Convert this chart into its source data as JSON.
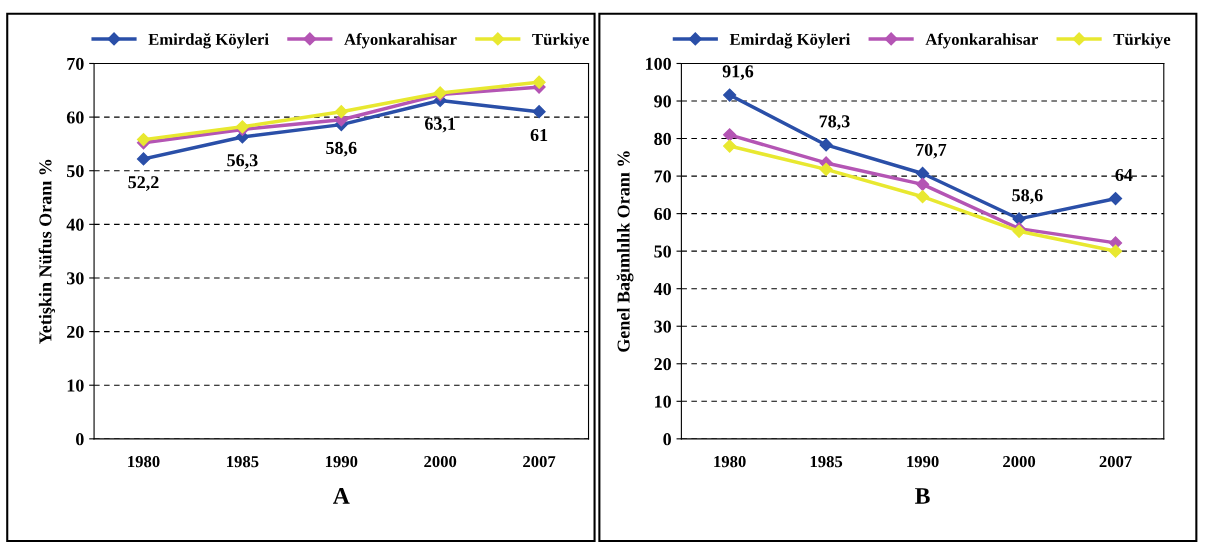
{
  "chart_data": [
    {
      "type": "line",
      "xlabel": "A",
      "ylabel": "Yetişkin Nüfus Oranı %",
      "categories": [
        "1980",
        "1985",
        "1990",
        "2000",
        "2007"
      ],
      "ylim": [
        0,
        70
      ],
      "yticks": [
        0,
        10,
        20,
        30,
        40,
        50,
        60,
        70
      ],
      "grid": "y",
      "legend": "top",
      "marker": "diamond",
      "line_style": "solid",
      "series": [
        {
          "name": "Emirdağ Köyleri",
          "color": "#2a4fa8",
          "values": [
            52.2,
            56.3,
            58.6,
            63.1,
            61
          ],
          "value_labels": [
            "52,2",
            "56,3",
            "58,6",
            "63,1",
            "61"
          ]
        },
        {
          "name": "Afyonkarahisar",
          "color": "#b455b4",
          "values": [
            55.2,
            57.7,
            59.5,
            64.2,
            65.6
          ]
        },
        {
          "name": "Türkiye",
          "color": "#e8e830",
          "values": [
            55.8,
            58.2,
            61,
            64.5,
            66.5
          ]
        }
      ]
    },
    {
      "type": "line",
      "xlabel": "B",
      "ylabel": "Genel Bağımlılık Oranı %",
      "categories": [
        "1980",
        "1985",
        "1990",
        "2000",
        "2007"
      ],
      "ylim": [
        0,
        100
      ],
      "yticks": [
        0,
        10,
        20,
        30,
        40,
        50,
        60,
        70,
        80,
        90,
        100
      ],
      "grid": "y",
      "legend": "top",
      "marker": "diamond",
      "line_style": "solid",
      "series": [
        {
          "name": "Emirdağ Köyleri",
          "color": "#2a4fa8",
          "values": [
            91.6,
            78.3,
            70.7,
            58.6,
            64
          ],
          "value_labels": [
            "91,6",
            "78,3",
            "70,7",
            "58,6",
            "64"
          ]
        },
        {
          "name": "Afyonkarahisar",
          "color": "#b455b4",
          "values": [
            81,
            73.5,
            67.8,
            56,
            52.2
          ]
        },
        {
          "name": "Türkiye",
          "color": "#e8e830",
          "values": [
            78,
            71.8,
            64.5,
            55.3,
            50
          ]
        }
      ]
    }
  ]
}
